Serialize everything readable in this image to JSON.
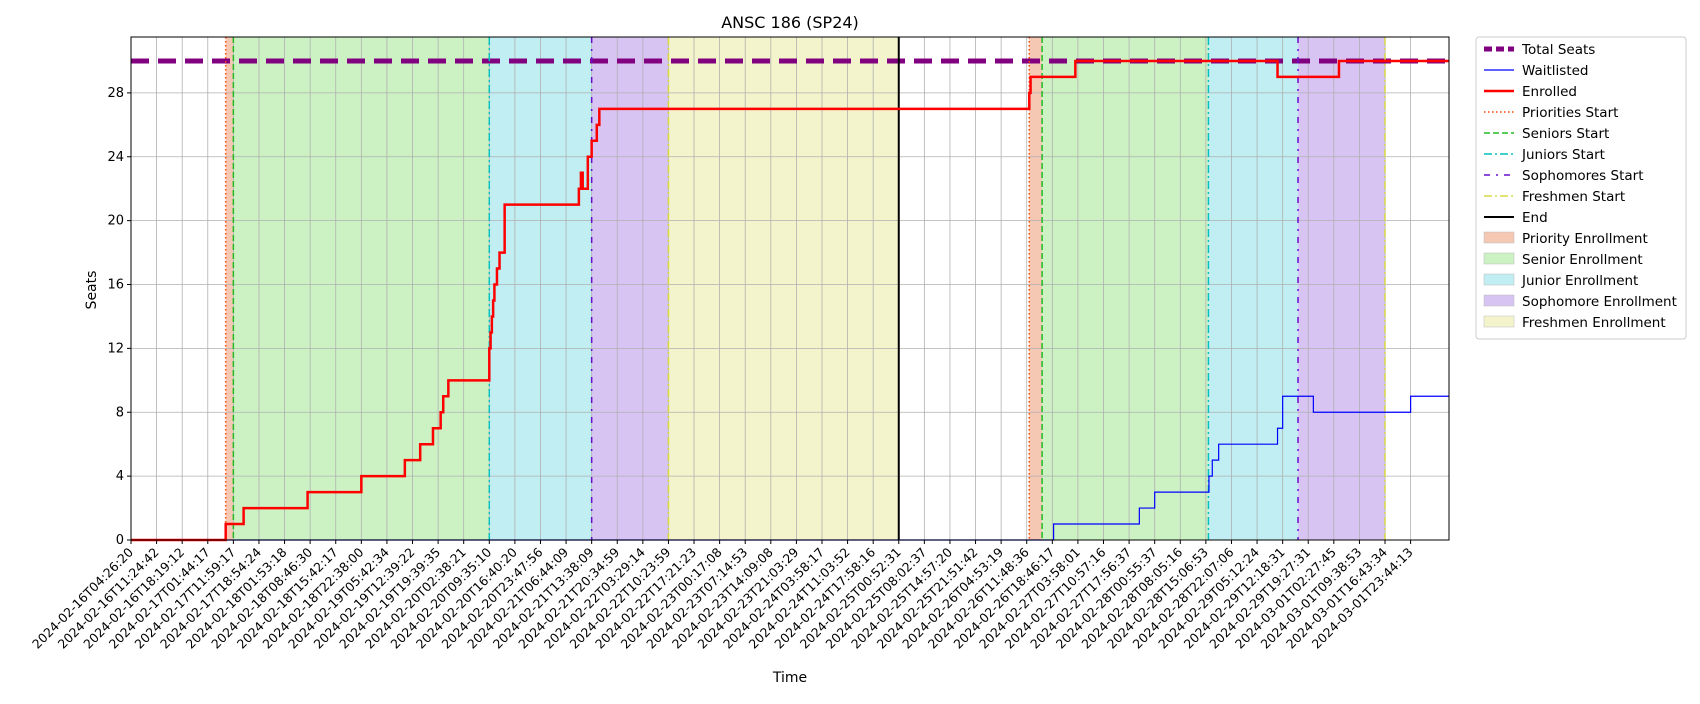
{
  "chart_data": {
    "type": "line",
    "title": "ANSC 186 (SP24)",
    "xlabel": "Time",
    "ylabel": "Seats",
    "ylim": [
      0,
      31.5
    ],
    "yticks": [
      0,
      4,
      8,
      12,
      16,
      20,
      24,
      28
    ],
    "grid": true,
    "legend_position": "outside right",
    "x_tick_labels": [
      "2024-02-16T04:26:20",
      "2024-02-16T11:24:42",
      "2024-02-16T18:19:12",
      "2024-02-17T01:44:17",
      "2024-02-17T11:59:17",
      "2024-02-17T18:54:24",
      "2024-02-18T01:53:18",
      "2024-02-18T08:46:30",
      "2024-02-18T15:42:17",
      "2024-02-18T22:38:00",
      "2024-02-19T05:42:34",
      "2024-02-19T12:39:22",
      "2024-02-19T19:39:35",
      "2024-02-20T02:38:21",
      "2024-02-20T09:35:10",
      "2024-02-20T16:40:20",
      "2024-02-20T23:47:56",
      "2024-02-21T06:44:09",
      "2024-02-21T13:38:09",
      "2024-02-21T20:34:59",
      "2024-02-22T03:29:14",
      "2024-02-22T10:23:59",
      "2024-02-22T17:21:23",
      "2024-02-23T00:17:08",
      "2024-02-23T07:14:53",
      "2024-02-23T14:09:08",
      "2024-02-23T21:03:29",
      "2024-02-24T03:58:17",
      "2024-02-24T11:03:52",
      "2024-02-24T17:58:16",
      "2024-02-25T00:52:31",
      "2024-02-25T08:02:37",
      "2024-02-25T14:57:20",
      "2024-02-25T21:51:42",
      "2024-02-26T04:53:19",
      "2024-02-26T11:48:36",
      "2024-02-26T18:46:17",
      "2024-02-27T03:58:01",
      "2024-02-27T10:57:16",
      "2024-02-27T17:56:37",
      "2024-02-28T00:55:37",
      "2024-02-28T08:05:16",
      "2024-02-28T15:06:53",
      "2024-02-28T22:07:06",
      "2024-02-29T05:12:24",
      "2024-02-29T12:18:31",
      "2024-02-29T19:27:31",
      "2024-03-01T02:27:45",
      "2024-03-01T09:38:53",
      "2024-03-01T16:43:34",
      "2024-03-01T23:44:13"
    ],
    "x_domain": [
      0,
      51.5
    ],
    "series": [
      {
        "name": "Total Seats",
        "color": "#800080",
        "style": "dashed-thick",
        "x": [
          0,
          51.5
        ],
        "y": [
          30,
          30
        ]
      },
      {
        "name": "Waitlisted",
        "color": "#0000ff",
        "style": "step",
        "x": [
          0,
          36.0,
          36.05,
          38.8,
          39.4,
          40.0,
          42.0,
          42.12,
          42.25,
          42.5,
          44.8,
          45.0,
          46.2,
          47.3,
          50.0
        ],
        "y": [
          0,
          0,
          1,
          1,
          2,
          3,
          3,
          4,
          5,
          6,
          7,
          9,
          8,
          8,
          9
        ]
      },
      {
        "name": "Enrolled",
        "color": "#ff0000",
        "style": "step-thick",
        "x": [
          0,
          3.7,
          4.4,
          6.9,
          9.0,
          10.7,
          11.3,
          11.8,
          12.1,
          12.2,
          12.4,
          14.0,
          14.05,
          14.1,
          14.15,
          14.2,
          14.25,
          14.3,
          14.4,
          14.6,
          14.9,
          15.2,
          17.5,
          17.58,
          17.65,
          17.75,
          17.85,
          18.0,
          18.2,
          18.3,
          18.45,
          35.1,
          35.15,
          35.35,
          36.9,
          37.0,
          44.8,
          45.1,
          47.2,
          48.0
        ],
        "y": [
          0,
          1,
          2,
          3,
          4,
          5,
          6,
          7,
          8,
          9,
          10,
          12,
          13,
          14,
          15,
          16,
          16,
          17,
          18,
          21,
          21,
          21,
          22,
          23,
          22,
          22,
          24,
          25,
          26,
          27,
          27,
          28,
          29,
          29,
          30,
          30,
          29,
          29,
          30,
          30
        ]
      },
      {
        "name": "Priorities Start",
        "color": "#ff4500",
        "style": "dotted-vline",
        "x": [
          3.7,
          35.1
        ]
      },
      {
        "name": "Seniors Start",
        "color": "#22bb22",
        "style": "dashed-vline",
        "x": [
          4.0,
          35.6
        ]
      },
      {
        "name": "Juniors Start",
        "color": "#00c0c0",
        "style": "dashdot-vline",
        "x": [
          14.0,
          42.1
        ]
      },
      {
        "name": "Sophomores Start",
        "color": "#6a0dcc",
        "style": "dashdotdot-vline",
        "x": [
          18.0,
          45.6
        ]
      },
      {
        "name": "Freshmen Start",
        "color": "#d8d840",
        "style": "dashdot-vline",
        "x": [
          21.0,
          49.0
        ]
      },
      {
        "name": "End",
        "color": "#000000",
        "style": "solid-vline",
        "x": [
          30.0
        ]
      }
    ],
    "periods": [
      {
        "name": "Priority Enrollment",
        "color": "#f5c8b4",
        "ranges": [
          [
            3.7,
            4.0
          ],
          [
            35.1,
            35.6
          ]
        ]
      },
      {
        "name": "Senior Enrollment",
        "color": "#ccf2c4",
        "ranges": [
          [
            4.0,
            14.0
          ],
          [
            35.6,
            42.1
          ]
        ]
      },
      {
        "name": "Junior Enrollment",
        "color": "#c0eef2",
        "ranges": [
          [
            14.0,
            18.0
          ],
          [
            42.1,
            45.6
          ]
        ]
      },
      {
        "name": "Sophomore Enrollment",
        "color": "#d7c4f2",
        "ranges": [
          [
            18.0,
            21.0
          ],
          [
            45.6,
            49.0
          ]
        ]
      },
      {
        "name": "Freshmen Enrollment",
        "color": "#f4f4cc",
        "ranges": [
          [
            21.0,
            30.0
          ]
        ]
      }
    ],
    "legend": [
      {
        "label": "Total Seats",
        "kind": "line",
        "color": "#800080",
        "dash": "8,4",
        "width": 5
      },
      {
        "label": "Waitlisted",
        "kind": "line",
        "color": "#0000ff",
        "dash": "",
        "width": 1.2
      },
      {
        "label": "Enrolled",
        "kind": "line",
        "color": "#ff0000",
        "dash": "",
        "width": 2.5
      },
      {
        "label": "Priorities Start",
        "kind": "line",
        "color": "#ff4500",
        "dash": "1.5,2.5",
        "width": 1.5
      },
      {
        "label": "Seniors Start",
        "kind": "line",
        "color": "#22bb22",
        "dash": "6,3",
        "width": 1.5
      },
      {
        "label": "Juniors Start",
        "kind": "line",
        "color": "#00c0c0",
        "dash": "8,3,2,3",
        "width": 1.5
      },
      {
        "label": "Sophomores Start",
        "kind": "line",
        "color": "#6a0dcc",
        "dash": "6,6,2,6",
        "width": 1.5
      },
      {
        "label": "Freshmen Start",
        "kind": "line",
        "color": "#d8d840",
        "dash": "8,3,2,3",
        "width": 1.5
      },
      {
        "label": "End",
        "kind": "line",
        "color": "#000000",
        "dash": "",
        "width": 2
      },
      {
        "label": "Priority Enrollment",
        "kind": "patch",
        "color": "#f5c8b4"
      },
      {
        "label": "Senior Enrollment",
        "kind": "patch",
        "color": "#ccf2c4"
      },
      {
        "label": "Junior Enrollment",
        "kind": "patch",
        "color": "#c0eef2"
      },
      {
        "label": "Sophomore Enrollment",
        "kind": "patch",
        "color": "#d7c4f2"
      },
      {
        "label": "Freshmen Enrollment",
        "kind": "patch",
        "color": "#f4f4cc"
      }
    ]
  }
}
